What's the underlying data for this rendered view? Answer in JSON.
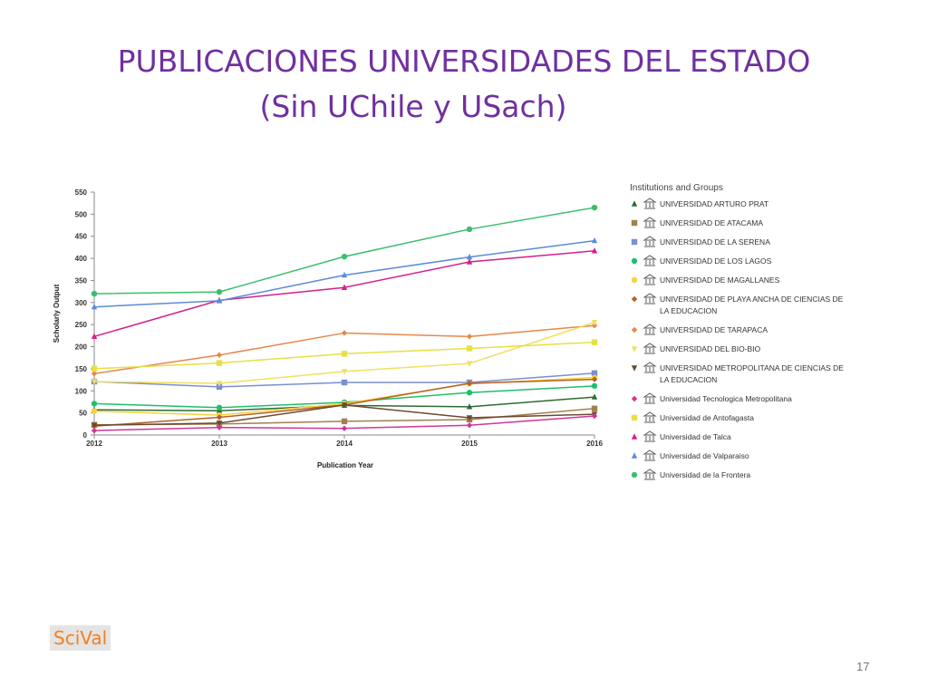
{
  "slide": {
    "title_line1": "PUBLICACIONES UNIVERSIDADES DEL ESTADO",
    "title_line2": "(Sin UChile y USach)",
    "logo_text": "SciVal",
    "page_number": "17"
  },
  "chart_data": {
    "type": "line",
    "xlabel": "Publication Year",
    "ylabel": "Scholarly Output",
    "x": [
      "2012",
      "2013",
      "2014",
      "2015",
      "2016"
    ],
    "ylim": [
      0,
      550
    ],
    "yticks": [
      0,
      50,
      100,
      150,
      200,
      250,
      300,
      350,
      400,
      450,
      500,
      550
    ],
    "grid": false,
    "legend_title": "Institutions and Groups",
    "legend_position": "right",
    "series": [
      {
        "name": "UNIVERSIDAD ARTURO PRAT",
        "color": "#2e6b35",
        "marker": "triangle",
        "values": [
          57,
          55,
          67,
          64,
          86
        ]
      },
      {
        "name": "UNIVERSIDAD DE ATACAMA",
        "color": "#a08050",
        "marker": "square",
        "values": [
          23,
          25,
          31,
          35,
          60
        ]
      },
      {
        "name": "UNIVERSIDAD DE LA SERENA",
        "color": "#7a8fcf",
        "marker": "square",
        "values": [
          121,
          109,
          119,
          119,
          140
        ]
      },
      {
        "name": "UNIVERSIDAD DE LOS LAGOS",
        "color": "#1fbf6a",
        "marker": "circle",
        "values": [
          71,
          62,
          74,
          96,
          111
        ]
      },
      {
        "name": "UNIVERSIDAD DE MAGALLANES",
        "color": "#f7d23a",
        "marker": "circle",
        "values": [
          54,
          45,
          71,
          116,
          130
        ]
      },
      {
        "name": "UNIVERSIDAD DE PLAYA ANCHA DE CIENCIAS DE LA EDUCACION",
        "color": "#b5602a",
        "marker": "diamond",
        "values": [
          20,
          40,
          68,
          117,
          126
        ]
      },
      {
        "name": "UNIVERSIDAD DE TARAPACA",
        "color": "#e8874a",
        "marker": "diamond",
        "values": [
          139,
          181,
          231,
          223,
          248
        ]
      },
      {
        "name": "UNIVERSIDAD DEL BIO-BIO",
        "color": "#f0e060",
        "marker": "triangle-down",
        "values": [
          121,
          117,
          144,
          162,
          255
        ]
      },
      {
        "name": "UNIVERSIDAD METROPOLITANA DE CIENCIAS DE LA EDUCACION",
        "color": "#6b4a30",
        "marker": "triangle-down",
        "values": [
          22,
          27,
          68,
          39,
          47
        ]
      },
      {
        "name": "Universidad Tecnologica Metropolitana",
        "color": "#d0359a",
        "marker": "diamond",
        "values": [
          10,
          17,
          15,
          22,
          43
        ]
      },
      {
        "name": "Universidad de Antofagasta",
        "color": "#e6e044",
        "marker": "square",
        "values": [
          150,
          163,
          184,
          196,
          210
        ]
      },
      {
        "name": "Universidad de Talca",
        "color": "#d61f8c",
        "marker": "triangle",
        "values": [
          223,
          305,
          334,
          392,
          417
        ]
      },
      {
        "name": "Universidad de Valparaiso",
        "color": "#5b8bd8",
        "marker": "triangle",
        "values": [
          290,
          304,
          362,
          403,
          440
        ]
      },
      {
        "name": "Universidad de la Frontera",
        "color": "#3cbf6e",
        "marker": "circle",
        "values": [
          320,
          324,
          404,
          466,
          515
        ]
      }
    ]
  }
}
